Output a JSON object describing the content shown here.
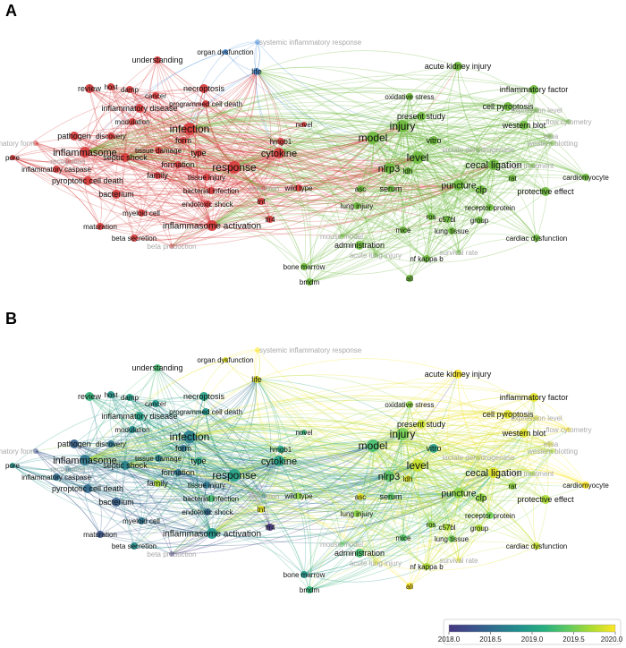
{
  "panels": [
    {
      "letter": "A",
      "colors": {
        "red": "#d63a3a",
        "green": "#6bb83a",
        "blue": "#4a90d9"
      },
      "nodes": [
        {
          "label": "systemic inflammatory response",
          "cluster": "blue",
          "faint": true
        },
        {
          "label": "organ dysfunction",
          "cluster": "blue"
        },
        {
          "label": "life",
          "cluster": "blue"
        },
        {
          "label": "understanding",
          "cluster": "red"
        },
        {
          "label": "review",
          "cluster": "red"
        },
        {
          "label": "host",
          "cluster": "red"
        },
        {
          "label": "damp",
          "cluster": "red"
        },
        {
          "label": "cancer",
          "cluster": "red"
        },
        {
          "label": "necroptosis",
          "cluster": "red"
        },
        {
          "label": "programmed cell death",
          "cluster": "red"
        },
        {
          "label": "inflammatory disease",
          "cluster": "red"
        },
        {
          "label": "modulation",
          "cluster": "red"
        },
        {
          "label": "pathogen",
          "cluster": "red"
        },
        {
          "label": "discovery",
          "cluster": "red"
        },
        {
          "label": "infection",
          "cluster": "red"
        },
        {
          "label": "inflammatory form",
          "cluster": "red",
          "faint": true
        },
        {
          "label": "form",
          "cluster": "red"
        },
        {
          "label": "type",
          "cluster": "red"
        },
        {
          "label": "inflammasome",
          "cluster": "red"
        },
        {
          "label": "pore",
          "cluster": "red"
        },
        {
          "label": "septic shock",
          "cluster": "red"
        },
        {
          "label": "tissue damage",
          "cluster": "red"
        },
        {
          "label": "formation",
          "cluster": "red"
        },
        {
          "label": "response",
          "cluster": "red"
        },
        {
          "label": "cytokine",
          "cluster": "red"
        },
        {
          "label": "hmgb1",
          "cluster": "red"
        },
        {
          "label": "novel",
          "cluster": "red"
        },
        {
          "label": "inflammatory caspase",
          "cluster": "red"
        },
        {
          "label": "recognition",
          "cluster": "red",
          "faint": true
        },
        {
          "label": "family",
          "cluster": "red"
        },
        {
          "label": "tissue injury",
          "cluster": "red"
        },
        {
          "label": "pyroptotic cell death",
          "cluster": "red"
        },
        {
          "label": "bacterial infection",
          "cluster": "red"
        },
        {
          "label": "bacterium",
          "cluster": "red"
        },
        {
          "label": "endotoxic shock",
          "cluster": "red"
        },
        {
          "label": "endotoxin",
          "cluster": "red",
          "faint": true
        },
        {
          "label": "wild type",
          "cluster": "red"
        },
        {
          "label": "myeloid cell",
          "cluster": "red"
        },
        {
          "label": "tnf",
          "cluster": "red"
        },
        {
          "label": "inflammasome activation",
          "cluster": "red"
        },
        {
          "label": "tlr4",
          "cluster": "red"
        },
        {
          "label": "maturation",
          "cluster": "red"
        },
        {
          "label": "beta secretion",
          "cluster": "red"
        },
        {
          "label": "beta production",
          "cluster": "red",
          "faint": true
        },
        {
          "label": "acute kidney injury",
          "cluster": "green"
        },
        {
          "label": "inflammatory factor",
          "cluster": "green"
        },
        {
          "label": "oxidative stress",
          "cluster": "green"
        },
        {
          "label": "cell pyroptosis",
          "cluster": "green"
        },
        {
          "label": "expression level",
          "cluster": "green",
          "faint": true
        },
        {
          "label": "present study",
          "cluster": "green"
        },
        {
          "label": "flow cytometry",
          "cluster": "green",
          "faint": true
        },
        {
          "label": "injury",
          "cluster": "green"
        },
        {
          "label": "western blot",
          "cluster": "green"
        },
        {
          "label": "elisa",
          "cluster": "green",
          "faint": true
        },
        {
          "label": "model",
          "cluster": "green"
        },
        {
          "label": "western blotting",
          "cluster": "green",
          "faint": true
        },
        {
          "label": "vitro",
          "cluster": "green"
        },
        {
          "label": "lactate dehydrogenase",
          "cluster": "green",
          "faint": true
        },
        {
          "label": "level",
          "cluster": "green"
        },
        {
          "label": "ldh",
          "cluster": "green"
        },
        {
          "label": "cecal ligation",
          "cluster": "green"
        },
        {
          "label": "lps treatment",
          "cluster": "green",
          "faint": true
        },
        {
          "label": "nlrp3",
          "cluster": "green"
        },
        {
          "label": "cardiomyocyte",
          "cluster": "green"
        },
        {
          "label": "rat",
          "cluster": "green"
        },
        {
          "label": "asc",
          "cluster": "green"
        },
        {
          "label": "serum",
          "cluster": "green"
        },
        {
          "label": "puncture",
          "cluster": "green"
        },
        {
          "label": "clp",
          "cluster": "green"
        },
        {
          "label": "protective effect",
          "cluster": "green"
        },
        {
          "label": "receptor protein",
          "cluster": "green"
        },
        {
          "label": "lung injury",
          "cluster": "green"
        },
        {
          "label": "ros",
          "cluster": "green"
        },
        {
          "label": "c57bl",
          "cluster": "green"
        },
        {
          "label": "group",
          "cluster": "green"
        },
        {
          "label": "mice",
          "cluster": "green"
        },
        {
          "label": "lung tissue",
          "cluster": "green"
        },
        {
          "label": "mouse model",
          "cluster": "green",
          "faint": true
        },
        {
          "label": "cardiac dysfunction",
          "cluster": "green"
        },
        {
          "label": "administration",
          "cluster": "green"
        },
        {
          "label": "acute lung injury",
          "cluster": "green",
          "faint": true
        },
        {
          "label": "survival rate",
          "cluster": "green",
          "faint": true
        },
        {
          "label": "nf kappa b",
          "cluster": "green"
        },
        {
          "label": "bone marrow",
          "cluster": "green"
        },
        {
          "label": "bmdm",
          "cluster": "green"
        },
        {
          "label": "ali",
          "cluster": "green"
        }
      ]
    },
    {
      "letter": "B",
      "colorbar": {
        "ticks": [
          "2018.0",
          "2018.5",
          "2019.0",
          "2019.5",
          "2020.0"
        ],
        "range": [
          2018.0,
          2020.0
        ],
        "colors": [
          "#453781",
          "#3b528b",
          "#2c728e",
          "#21918c",
          "#28ae80",
          "#5ec962",
          "#addc30",
          "#fde725"
        ]
      }
    }
  ]
}
